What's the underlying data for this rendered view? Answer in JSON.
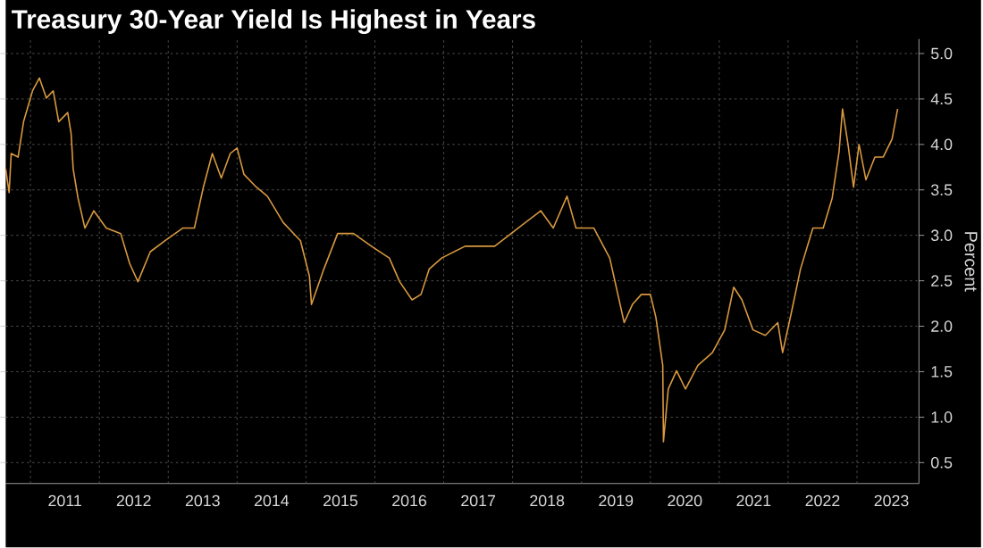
{
  "chart_data": {
    "type": "line",
    "title": "Treasury 30-Year Yield Is Highest in Years",
    "ylabel": "Percent",
    "x": [
      2010.64,
      2010.69,
      2010.72,
      2010.82,
      2010.9,
      2011.03,
      2011.13,
      2011.23,
      2011.33,
      2011.41,
      2011.54,
      2011.59,
      2011.62,
      2011.69,
      2011.79,
      2011.92,
      2012.1,
      2012.31,
      2012.44,
      2012.56,
      2012.74,
      2012.95,
      2013.21,
      2013.38,
      2013.51,
      2013.64,
      2013.77,
      2013.9,
      2014.0,
      2014.1,
      2014.28,
      2014.44,
      2014.67,
      2014.92,
      2015.05,
      2015.08,
      2015.26,
      2015.46,
      2015.69,
      2015.95,
      2016.21,
      2016.36,
      2016.54,
      2016.67,
      2016.79,
      2016.97,
      2017.31,
      2017.74,
      2018.08,
      2018.41,
      2018.59,
      2018.79,
      2018.92,
      2019.18,
      2019.41,
      2019.62,
      2019.74,
      2019.87,
      2020.0,
      2020.08,
      2020.18,
      2020.19,
      2020.26,
      2020.38,
      2020.51,
      2020.69,
      2020.9,
      2021.08,
      2021.21,
      2021.33,
      2021.49,
      2021.67,
      2021.85,
      2021.92,
      2022.05,
      2022.18,
      2022.36,
      2022.51,
      2022.64,
      2022.74,
      2022.79,
      2022.87,
      2022.95,
      2023.03,
      2023.13,
      2023.26,
      2023.38,
      2023.51,
      2023.59
    ],
    "series": [
      {
        "color": "#d9993f",
        "values": [
          3.73,
          3.47,
          3.9,
          3.86,
          4.25,
          4.59,
          4.73,
          4.51,
          4.59,
          4.25,
          4.35,
          4.12,
          3.73,
          3.41,
          3.08,
          3.27,
          3.08,
          3.02,
          2.69,
          2.49,
          2.82,
          2.94,
          3.08,
          3.08,
          3.53,
          3.9,
          3.63,
          3.9,
          3.96,
          3.67,
          3.53,
          3.43,
          3.14,
          2.94,
          2.55,
          2.24,
          2.63,
          3.02,
          3.02,
          2.88,
          2.75,
          2.49,
          2.29,
          2.35,
          2.63,
          2.75,
          2.88,
          2.88,
          3.08,
          3.27,
          3.08,
          3.43,
          3.08,
          3.08,
          2.75,
          2.04,
          2.24,
          2.35,
          2.35,
          2.1,
          1.57,
          0.73,
          1.31,
          1.51,
          1.31,
          1.57,
          1.71,
          1.96,
          2.43,
          2.29,
          1.96,
          1.9,
          2.04,
          1.71,
          2.16,
          2.63,
          3.08,
          3.08,
          3.41,
          3.92,
          4.39,
          4.0,
          3.53,
          4.0,
          3.61,
          3.86,
          3.86,
          4.06,
          4.39
        ]
      }
    ],
    "xlim": [
      2010.64,
      2023.9
    ],
    "ylim": [
      0.27,
      5.16
    ],
    "xticks": [
      {
        "value": 2011,
        "label": null
      },
      {
        "value": 2011.5,
        "label": "2011"
      },
      {
        "value": 2012,
        "label": null
      },
      {
        "value": 2012.5,
        "label": "2012"
      },
      {
        "value": 2013,
        "label": null
      },
      {
        "value": 2013.5,
        "label": "2013"
      },
      {
        "value": 2014,
        "label": null
      },
      {
        "value": 2014.5,
        "label": "2014"
      },
      {
        "value": 2015,
        "label": null
      },
      {
        "value": 2015.5,
        "label": "2015"
      },
      {
        "value": 2016,
        "label": null
      },
      {
        "value": 2016.5,
        "label": "2016"
      },
      {
        "value": 2017,
        "label": null
      },
      {
        "value": 2017.5,
        "label": "2017"
      },
      {
        "value": 2018,
        "label": null
      },
      {
        "value": 2018.5,
        "label": "2018"
      },
      {
        "value": 2019,
        "label": null
      },
      {
        "value": 2019.5,
        "label": "2019"
      },
      {
        "value": 2020,
        "label": null
      },
      {
        "value": 2020.5,
        "label": "2020"
      },
      {
        "value": 2021,
        "label": null
      },
      {
        "value": 2021.5,
        "label": "2021"
      },
      {
        "value": 2022,
        "label": null
      },
      {
        "value": 2022.5,
        "label": "2022"
      },
      {
        "value": 2023,
        "label": null
      },
      {
        "value": 2023.5,
        "label": "2023"
      }
    ],
    "yticks": [
      0.5,
      {
        "value": 1,
        "label": "1.0"
      },
      1.5,
      {
        "value": 2,
        "label": "2.0"
      },
      2.5,
      {
        "value": 3,
        "label": "3.0"
      },
      3.5,
      {
        "value": 4,
        "label": "4.0"
      },
      4.5,
      {
        "value": 5,
        "label": "5.0"
      }
    ],
    "grid": true,
    "marker": "none",
    "line_style": "solid"
  }
}
